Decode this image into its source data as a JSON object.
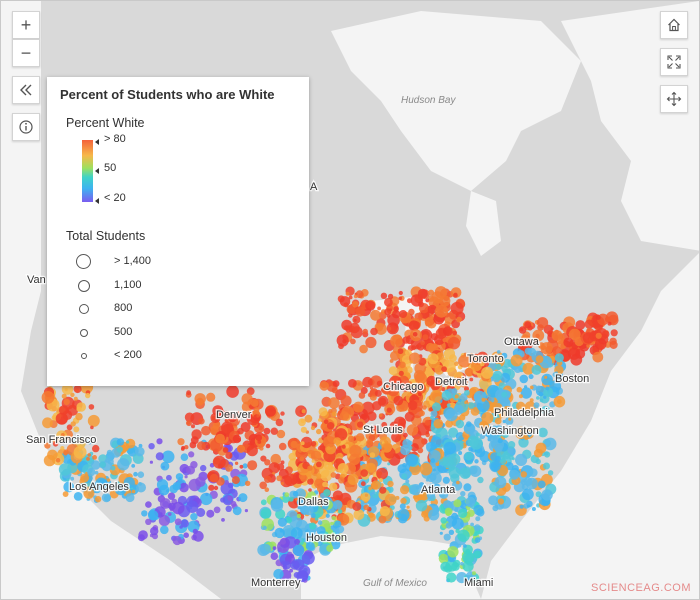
{
  "legend": {
    "title": "Percent of Students who are White",
    "color_title": "Percent White",
    "color_stops": [
      {
        "label": "> 80",
        "value": 80
      },
      {
        "label": "50",
        "value": 50
      },
      {
        "label": "< 20",
        "value": 20
      }
    ],
    "size_title": "Total Students",
    "size_stops": [
      {
        "label": "> 1,400",
        "value": 1400
      },
      {
        "label": "1,100",
        "value": 1100
      },
      {
        "label": "800",
        "value": 800
      },
      {
        "label": "500",
        "value": 500
      },
      {
        "label": "< 200",
        "value": 200
      }
    ]
  },
  "map_labels": {
    "hudson_bay": "Hudson Bay",
    "ottawa": "Ottawa",
    "toronto": "Toronto",
    "boston": "Boston",
    "detroit": "Detroit",
    "chicago": "Chicago",
    "philadelphia": "Philadelphia",
    "washington": "Washington",
    "st_louis": "St Louis",
    "denver": "Denver",
    "san_francisco": "San Francisco",
    "los_angeles": "Los Angeles",
    "dallas": "Dallas",
    "houston": "Houston",
    "atlanta": "Atlanta",
    "miami": "Miami",
    "monterrey": "Monterrey",
    "gulf_of_mexico": "Gulf of Mexico",
    "vancouver_partial": "Van",
    "usa_partial": "A"
  },
  "controls": {
    "zoom_in": "+",
    "zoom_out": "−"
  },
  "colors": {
    "land": "#d9d9d9",
    "water": "#f4f4f4",
    "high_white": "#f0412c",
    "mid": "#f59a35",
    "low_white": "#7a4de8"
  },
  "watermark": "SCIENCEAG.COM"
}
